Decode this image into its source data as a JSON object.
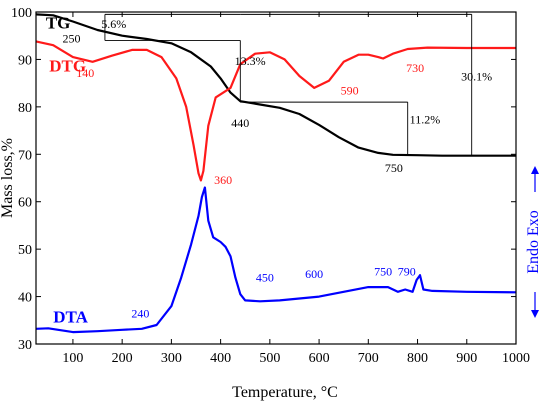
{
  "chart_data": {
    "type": "line",
    "xlabel": "Temperature, °C",
    "ylabel": "Mass loss,%",
    "right_label": "Endo Exo",
    "xlim": [
      25,
      1000
    ],
    "ylim": [
      30,
      100
    ],
    "x_ticks": [
      100,
      200,
      300,
      400,
      500,
      600,
      700,
      800,
      900,
      1000
    ],
    "y_ticks": [
      30,
      40,
      50,
      60,
      70,
      80,
      90,
      100
    ],
    "grid": false,
    "colors": {
      "TG": "#000000",
      "DTG": "#ff1a1a",
      "DTA": "#0000ff"
    },
    "series": [
      {
        "name": "TG",
        "x": [
          25,
          60,
          100,
          150,
          200,
          250,
          300,
          340,
          380,
          400,
          420,
          440,
          480,
          520,
          560,
          600,
          640,
          680,
          720,
          750,
          800,
          850,
          900,
          950,
          1000
        ],
        "y": [
          99.5,
          99.3,
          98.0,
          96.2,
          95.0,
          94.3,
          93.4,
          91.5,
          88.5,
          86.0,
          83.0,
          81.2,
          80.5,
          79.8,
          78.5,
          76.2,
          73.6,
          71.4,
          70.3,
          69.9,
          69.8,
          69.7,
          69.7,
          69.7,
          69.7
        ]
      },
      {
        "name": "DTG",
        "x": [
          25,
          60,
          100,
          140,
          180,
          220,
          250,
          280,
          310,
          330,
          345,
          355,
          360,
          365,
          375,
          390,
          420,
          440,
          470,
          500,
          530,
          560,
          590,
          620,
          650,
          680,
          700,
          720,
          730,
          750,
          780,
          820,
          900,
          1000
        ],
        "y": [
          93.8,
          93.0,
          90.5,
          89.5,
          90.8,
          92.0,
          92.0,
          90.5,
          86.0,
          80.0,
          72.0,
          66.0,
          64.5,
          66.5,
          76.0,
          82.0,
          84.0,
          89.0,
          91.2,
          91.5,
          90.0,
          86.5,
          84.0,
          85.5,
          89.5,
          91.0,
          91.0,
          90.5,
          90.2,
          91.2,
          92.2,
          92.5,
          92.4,
          92.4
        ]
      },
      {
        "name": "DTA",
        "x": [
          25,
          50,
          100,
          150,
          200,
          240,
          270,
          300,
          320,
          340,
          355,
          362,
          368,
          375,
          385,
          400,
          410,
          420,
          430,
          440,
          450,
          480,
          520,
          560,
          600,
          650,
          700,
          740,
          760,
          775,
          790,
          798,
          805,
          812,
          830,
          900,
          1000
        ],
        "y": [
          33.2,
          33.3,
          32.5,
          32.7,
          33.0,
          33.2,
          34.0,
          38.0,
          44.0,
          51.0,
          57.0,
          61.0,
          63.0,
          56.0,
          52.5,
          51.5,
          50.5,
          48.5,
          44.0,
          40.5,
          39.2,
          39.0,
          39.2,
          39.6,
          40.0,
          41.0,
          42.0,
          42.0,
          41.0,
          41.5,
          41.0,
          43.5,
          44.5,
          41.5,
          41.2,
          41.0,
          40.9
        ]
      }
    ],
    "series_labels": [
      {
        "series": "TG",
        "text": "TG",
        "x": 45,
        "y": 96.5
      },
      {
        "series": "DTG",
        "text": "DTG",
        "x": 52,
        "y": 87.5
      },
      {
        "series": "DTA",
        "text": "DTA",
        "x": 60,
        "y": 34.5
      }
    ],
    "annotations": [
      {
        "color": "#000000",
        "text": "5.6%",
        "x": 183,
        "y": 96.6
      },
      {
        "color": "#000000",
        "text": "250",
        "x": 97,
        "y": 93.6
      },
      {
        "color": "#000000",
        "text": "13.3%",
        "x": 460,
        "y": 88.8
      },
      {
        "color": "#000000",
        "text": "440",
        "x": 440,
        "y": 75.8
      },
      {
        "color": "#000000",
        "text": "11.2%",
        "x": 815,
        "y": 76.5
      },
      {
        "color": "#000000",
        "text": "30.1%",
        "x": 920,
        "y": 85.6
      },
      {
        "color": "#000000",
        "text": "750",
        "x": 752,
        "y": 66.3
      },
      {
        "color": "#ff1a1a",
        "text": "140",
        "x": 125,
        "y": 86.3
      },
      {
        "color": "#ff1a1a",
        "text": "360",
        "x": 405,
        "y": 63.7
      },
      {
        "color": "#ff1a1a",
        "text": "590",
        "x": 662,
        "y": 82.6
      },
      {
        "color": "#ff1a1a",
        "text": "730",
        "x": 795,
        "y": 87.4
      },
      {
        "color": "#0000ff",
        "text": "240",
        "x": 237,
        "y": 35.6
      },
      {
        "color": "#0000ff",
        "text": "450",
        "x": 490,
        "y": 43.2
      },
      {
        "color": "#0000ff",
        "text": "600",
        "x": 590,
        "y": 43.9
      },
      {
        "color": "#0000ff",
        "text": "750",
        "x": 730,
        "y": 44.4
      },
      {
        "color": "#0000ff",
        "text": "790",
        "x": 778,
        "y": 44.4
      }
    ]
  }
}
